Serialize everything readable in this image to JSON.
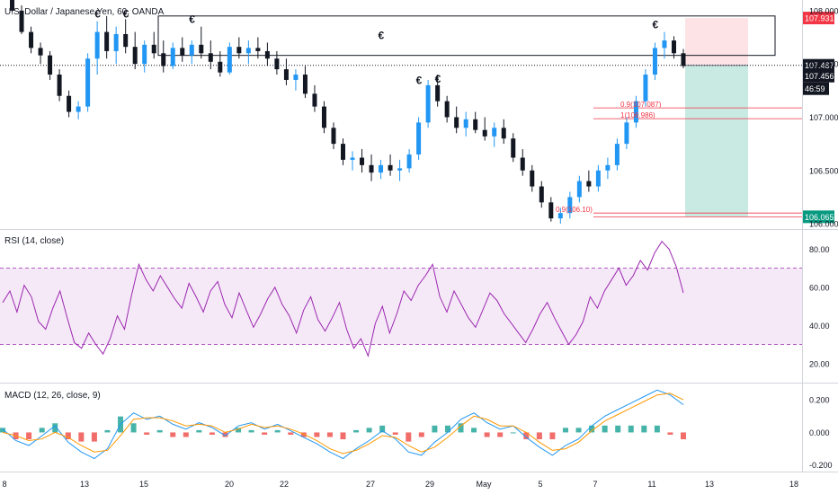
{
  "chart_data": {
    "type": "candlestick",
    "title": "U.S. Dollar / Japanese Yen, 60, OANDA",
    "x_axis": {
      "tick_labels": [
        "8",
        "13",
        "15",
        "20",
        "22",
        "27",
        "29",
        "May",
        "5",
        "7",
        "11",
        "13",
        "18"
      ]
    },
    "price_panel": {
      "ylim": [
        105.95,
        108.1
      ],
      "tick_labels": [
        "108.000",
        "107.500",
        "107.000",
        "106.500",
        "106.000"
      ],
      "tick_values": [
        108.0,
        107.5,
        107.0,
        106.5,
        106.0
      ],
      "price_tags": [
        {
          "label": "107.931",
          "value": 107.931,
          "color": "#f23645"
        },
        {
          "label": "107.487",
          "value": 107.487,
          "color": "#131722"
        },
        {
          "label": "107.456",
          "value": 107.456,
          "color": "#131722"
        },
        {
          "label": "46:59",
          "value": 107.33,
          "color": "#131722"
        },
        {
          "label": "106.065",
          "value": 106.065,
          "color": "#089981"
        }
      ],
      "annotations": [
        {
          "text": "€",
          "value": 107.9
        },
        {
          "text": "€",
          "value": 107.9
        },
        {
          "text": "€",
          "value": 107.85
        },
        {
          "text": "€",
          "value": 107.7
        },
        {
          "text": "€",
          "value": 107.28
        },
        {
          "text": "€",
          "value": 107.29
        },
        {
          "text": "€",
          "value": 107.8
        }
      ],
      "fib_labels": [
        {
          "text": "0.9(107.087)",
          "value": 107.087
        },
        {
          "text": "1(106.986)",
          "value": 106.986
        },
        {
          "text": "0.9(106.10)",
          "value": 106.1
        }
      ],
      "candles": [
        {
          "o": 108.25,
          "h": 108.3,
          "l": 108.1,
          "c": 108.18
        },
        {
          "o": 108.18,
          "h": 108.2,
          "l": 107.98,
          "c": 108.0
        },
        {
          "o": 108.0,
          "h": 108.05,
          "l": 107.78,
          "c": 107.8
        },
        {
          "o": 107.8,
          "h": 107.85,
          "l": 107.6,
          "c": 107.65
        },
        {
          "o": 107.65,
          "h": 107.7,
          "l": 107.5,
          "c": 107.58
        },
        {
          "o": 107.58,
          "h": 107.62,
          "l": 107.35,
          "c": 107.4
        },
        {
          "o": 107.4,
          "h": 107.45,
          "l": 107.15,
          "c": 107.2
        },
        {
          "o": 107.2,
          "h": 107.25,
          "l": 107.0,
          "c": 107.05
        },
        {
          "o": 107.05,
          "h": 107.15,
          "l": 106.98,
          "c": 107.1
        },
        {
          "o": 107.1,
          "h": 107.6,
          "l": 107.05,
          "c": 107.55
        },
        {
          "o": 107.55,
          "h": 107.9,
          "l": 107.4,
          "c": 107.8
        },
        {
          "o": 107.8,
          "h": 107.95,
          "l": 107.55,
          "c": 107.62
        },
        {
          "o": 107.62,
          "h": 107.85,
          "l": 107.5,
          "c": 107.78
        },
        {
          "o": 107.78,
          "h": 107.92,
          "l": 107.6,
          "c": 107.66
        },
        {
          "o": 107.66,
          "h": 107.8,
          "l": 107.45,
          "c": 107.5
        },
        {
          "o": 107.5,
          "h": 107.72,
          "l": 107.42,
          "c": 107.68
        },
        {
          "o": 107.68,
          "h": 107.8,
          "l": 107.55,
          "c": 107.6
        },
        {
          "o": 107.6,
          "h": 107.72,
          "l": 107.42,
          "c": 107.48
        },
        {
          "o": 107.48,
          "h": 107.7,
          "l": 107.45,
          "c": 107.65
        },
        {
          "o": 107.65,
          "h": 107.75,
          "l": 107.52,
          "c": 107.58
        },
        {
          "o": 107.58,
          "h": 107.72,
          "l": 107.5,
          "c": 107.68
        },
        {
          "o": 107.68,
          "h": 107.85,
          "l": 107.55,
          "c": 107.6
        },
        {
          "o": 107.6,
          "h": 107.72,
          "l": 107.45,
          "c": 107.52
        },
        {
          "o": 107.52,
          "h": 107.62,
          "l": 107.38,
          "c": 107.42
        },
        {
          "o": 107.42,
          "h": 107.7,
          "l": 107.4,
          "c": 107.66
        },
        {
          "o": 107.66,
          "h": 107.75,
          "l": 107.55,
          "c": 107.6
        },
        {
          "o": 107.6,
          "h": 107.72,
          "l": 107.5,
          "c": 107.65
        },
        {
          "o": 107.65,
          "h": 107.75,
          "l": 107.55,
          "c": 107.62
        },
        {
          "o": 107.62,
          "h": 107.7,
          "l": 107.48,
          "c": 107.55
        },
        {
          "o": 107.55,
          "h": 107.62,
          "l": 107.4,
          "c": 107.45
        },
        {
          "o": 107.45,
          "h": 107.55,
          "l": 107.3,
          "c": 107.35
        },
        {
          "o": 107.35,
          "h": 107.45,
          "l": 107.25,
          "c": 107.4
        },
        {
          "o": 107.4,
          "h": 107.48,
          "l": 107.18,
          "c": 107.22
        },
        {
          "o": 107.22,
          "h": 107.3,
          "l": 107.05,
          "c": 107.1
        },
        {
          "o": 107.1,
          "h": 107.15,
          "l": 106.85,
          "c": 106.9
        },
        {
          "o": 106.9,
          "h": 106.95,
          "l": 106.7,
          "c": 106.75
        },
        {
          "o": 106.75,
          "h": 106.8,
          "l": 106.55,
          "c": 106.6
        },
        {
          "o": 106.6,
          "h": 106.68,
          "l": 106.5,
          "c": 106.62
        },
        {
          "o": 106.62,
          "h": 106.7,
          "l": 106.48,
          "c": 106.55
        },
        {
          "o": 106.55,
          "h": 106.65,
          "l": 106.4,
          "c": 106.48
        },
        {
          "o": 106.48,
          "h": 106.6,
          "l": 106.42,
          "c": 106.55
        },
        {
          "o": 106.55,
          "h": 106.65,
          "l": 106.45,
          "c": 106.5
        },
        {
          "o": 106.5,
          "h": 106.6,
          "l": 106.4,
          "c": 106.52
        },
        {
          "o": 106.52,
          "h": 106.7,
          "l": 106.48,
          "c": 106.65
        },
        {
          "o": 106.65,
          "h": 107.0,
          "l": 106.6,
          "c": 106.95
        },
        {
          "o": 106.95,
          "h": 107.35,
          "l": 106.9,
          "c": 107.3
        },
        {
          "o": 107.3,
          "h": 107.4,
          "l": 107.1,
          "c": 107.15
        },
        {
          "o": 107.15,
          "h": 107.2,
          "l": 106.95,
          "c": 107.0
        },
        {
          "o": 107.0,
          "h": 107.1,
          "l": 106.85,
          "c": 106.9
        },
        {
          "o": 106.9,
          "h": 107.05,
          "l": 106.82,
          "c": 106.98
        },
        {
          "o": 106.98,
          "h": 107.05,
          "l": 106.85,
          "c": 106.88
        },
        {
          "o": 106.88,
          "h": 107.0,
          "l": 106.78,
          "c": 106.82
        },
        {
          "o": 106.82,
          "h": 106.95,
          "l": 106.72,
          "c": 106.9
        },
        {
          "o": 106.9,
          "h": 106.98,
          "l": 106.75,
          "c": 106.8
        },
        {
          "o": 106.8,
          "h": 106.85,
          "l": 106.58,
          "c": 106.62
        },
        {
          "o": 106.62,
          "h": 106.7,
          "l": 106.45,
          "c": 106.5
        },
        {
          "o": 106.5,
          "h": 106.55,
          "l": 106.3,
          "c": 106.35
        },
        {
          "o": 106.35,
          "h": 106.4,
          "l": 106.15,
          "c": 106.2
        },
        {
          "o": 106.2,
          "h": 106.25,
          "l": 106.02,
          "c": 106.05
        },
        {
          "o": 106.05,
          "h": 106.15,
          "l": 106.0,
          "c": 106.1
        },
        {
          "o": 106.1,
          "h": 106.3,
          "l": 106.05,
          "c": 106.25
        },
        {
          "o": 106.25,
          "h": 106.45,
          "l": 106.2,
          "c": 106.4
        },
        {
          "o": 106.4,
          "h": 106.5,
          "l": 106.3,
          "c": 106.35
        },
        {
          "o": 106.35,
          "h": 106.55,
          "l": 106.3,
          "c": 106.5
        },
        {
          "o": 106.5,
          "h": 106.62,
          "l": 106.42,
          "c": 106.55
        },
        {
          "o": 106.55,
          "h": 106.8,
          "l": 106.5,
          "c": 106.75
        },
        {
          "o": 106.75,
          "h": 107.0,
          "l": 106.7,
          "c": 106.95
        },
        {
          "o": 106.95,
          "h": 107.2,
          "l": 106.9,
          "c": 107.15
        },
        {
          "o": 107.15,
          "h": 107.45,
          "l": 107.1,
          "c": 107.4
        },
        {
          "o": 107.4,
          "h": 107.7,
          "l": 107.35,
          "c": 107.65
        },
        {
          "o": 107.65,
          "h": 107.8,
          "l": 107.55,
          "c": 107.72
        },
        {
          "o": 107.72,
          "h": 107.76,
          "l": 107.55,
          "c": 107.6
        },
        {
          "o": 107.6,
          "h": 107.64,
          "l": 107.46,
          "c": 107.48
        }
      ],
      "position": {
        "entry": 107.487,
        "stop": 107.931,
        "target": 106.065
      }
    },
    "rsi_panel": {
      "label": "RSI (14, close)",
      "ylim": [
        10,
        90
      ],
      "tick_labels": [
        "80.00",
        "60.00",
        "40.00",
        "20.00"
      ],
      "tick_values": [
        80,
        60,
        40,
        20
      ],
      "band": [
        30,
        70
      ],
      "color": "#9c27b0",
      "values": [
        52,
        58,
        47,
        61,
        55,
        42,
        38,
        49,
        58,
        44,
        31,
        28,
        36,
        30,
        25,
        33,
        45,
        38,
        56,
        72,
        64,
        58,
        66,
        60,
        54,
        49,
        62,
        55,
        47,
        58,
        63,
        51,
        44,
        57,
        48,
        39,
        46,
        54,
        60,
        51,
        45,
        36,
        48,
        55,
        43,
        37,
        44,
        52,
        38,
        28,
        33,
        24,
        41,
        50,
        36,
        46,
        58,
        53,
        61,
        66,
        72,
        55,
        47,
        58,
        51,
        44,
        39,
        48,
        57,
        53,
        46,
        41,
        36,
        31,
        38,
        46,
        52,
        44,
        37,
        30,
        35,
        42,
        55,
        49,
        58,
        64,
        70,
        61,
        66,
        74,
        69,
        78,
        84,
        80,
        71,
        57
      ]
    },
    "macd_panel": {
      "label": "MACD (12, 26, close, 9)",
      "ylim": [
        -0.24,
        0.3
      ],
      "tick_labels": [
        "0.200",
        "0.000",
        "-0.200"
      ],
      "tick_values": [
        0.2,
        0.0,
        -0.2
      ],
      "macd_color": "#2196f3",
      "signal_color": "#ff9800",
      "macd": [
        0.02,
        -0.05,
        -0.08,
        -0.02,
        0.04,
        -0.06,
        -0.12,
        -0.16,
        -0.1,
        0.05,
        0.12,
        0.08,
        0.1,
        0.05,
        0.02,
        0.06,
        0.03,
        -0.02,
        0.04,
        0.06,
        0.02,
        0.05,
        0.01,
        -0.03,
        -0.07,
        -0.12,
        -0.16,
        -0.1,
        -0.05,
        0.01,
        -0.04,
        -0.12,
        -0.14,
        -0.06,
        0.0,
        0.08,
        0.12,
        0.06,
        0.02,
        0.04,
        -0.03,
        -0.09,
        -0.14,
        -0.08,
        -0.04,
        0.04,
        0.1,
        0.14,
        0.18,
        0.22,
        0.26,
        0.23,
        0.17
      ],
      "signal": [
        0.0,
        -0.02,
        -0.05,
        -0.04,
        0.0,
        -0.03,
        -0.08,
        -0.12,
        -0.11,
        -0.02,
        0.08,
        0.09,
        0.09,
        0.07,
        0.04,
        0.05,
        0.04,
        0.0,
        0.02,
        0.05,
        0.03,
        0.04,
        0.02,
        -0.01,
        -0.05,
        -0.1,
        -0.13,
        -0.11,
        -0.07,
        -0.02,
        -0.03,
        -0.08,
        -0.12,
        -0.09,
        -0.03,
        0.04,
        0.1,
        0.08,
        0.04,
        0.04,
        0.0,
        -0.06,
        -0.11,
        -0.1,
        -0.06,
        0.01,
        0.07,
        0.11,
        0.15,
        0.19,
        0.23,
        0.24,
        0.2
      ]
    }
  }
}
